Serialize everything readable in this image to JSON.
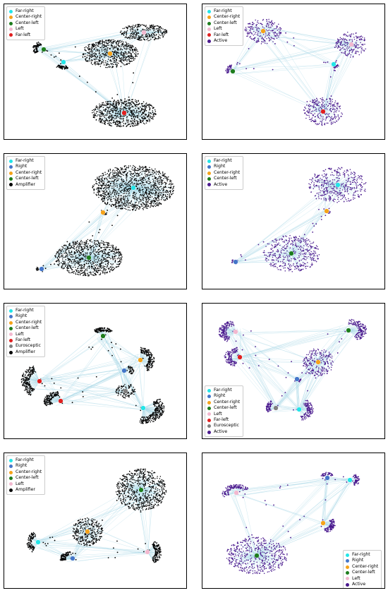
{
  "colors": {
    "Far-right": "#22e5e8",
    "Right": "#4476c9",
    "Center-right": "#f5a31a",
    "Center-left": "#1d7d1d",
    "Left": "#f2b8cf",
    "Far-left": "#e01f1f",
    "Eurosceptic": "#7f7f7f",
    "Amplifier": "#000000",
    "Active": "#4b1a8e",
    "edge": "#a9d8e6"
  },
  "panels": [
    {
      "legend": [
        "Far-right",
        "Center-right",
        "Center-left",
        "Left",
        "Far-left"
      ],
      "node_color": "Amplifier"
    },
    {
      "legend": [
        "Far-right",
        "Center-right",
        "Center-left",
        "Left",
        "Far-left",
        "Active"
      ],
      "node_color": "Active"
    },
    {
      "legend": [
        "Far-right",
        "Right",
        "Center-right",
        "Center-left",
        "Amplifier"
      ],
      "node_color": "Amplifier"
    },
    {
      "legend": [
        "Far-right",
        "Right",
        "Center-right",
        "Center-left",
        "Active"
      ],
      "node_color": "Active"
    },
    {
      "legend": [
        "Far-right",
        "Right",
        "Center-right",
        "Center-left",
        "Left",
        "Far-left",
        "Eurosceptic",
        "Amplifier"
      ],
      "node_color": "Amplifier"
    },
    {
      "legend": [
        "Far-right",
        "Right",
        "Center-right",
        "Center-left",
        "Left",
        "Far-left",
        "Eurosceptic",
        "Active"
      ],
      "node_color": "Active"
    },
    {
      "legend": [
        "Far-right",
        "Right",
        "Center-right",
        "Center-left",
        "Left",
        "Amplifier"
      ],
      "node_color": "Amplifier"
    },
    {
      "legend": [
        "Far-right",
        "Right",
        "Center-right",
        "Center-left",
        "Left",
        "Active"
      ],
      "node_color": "Active"
    }
  ]
}
